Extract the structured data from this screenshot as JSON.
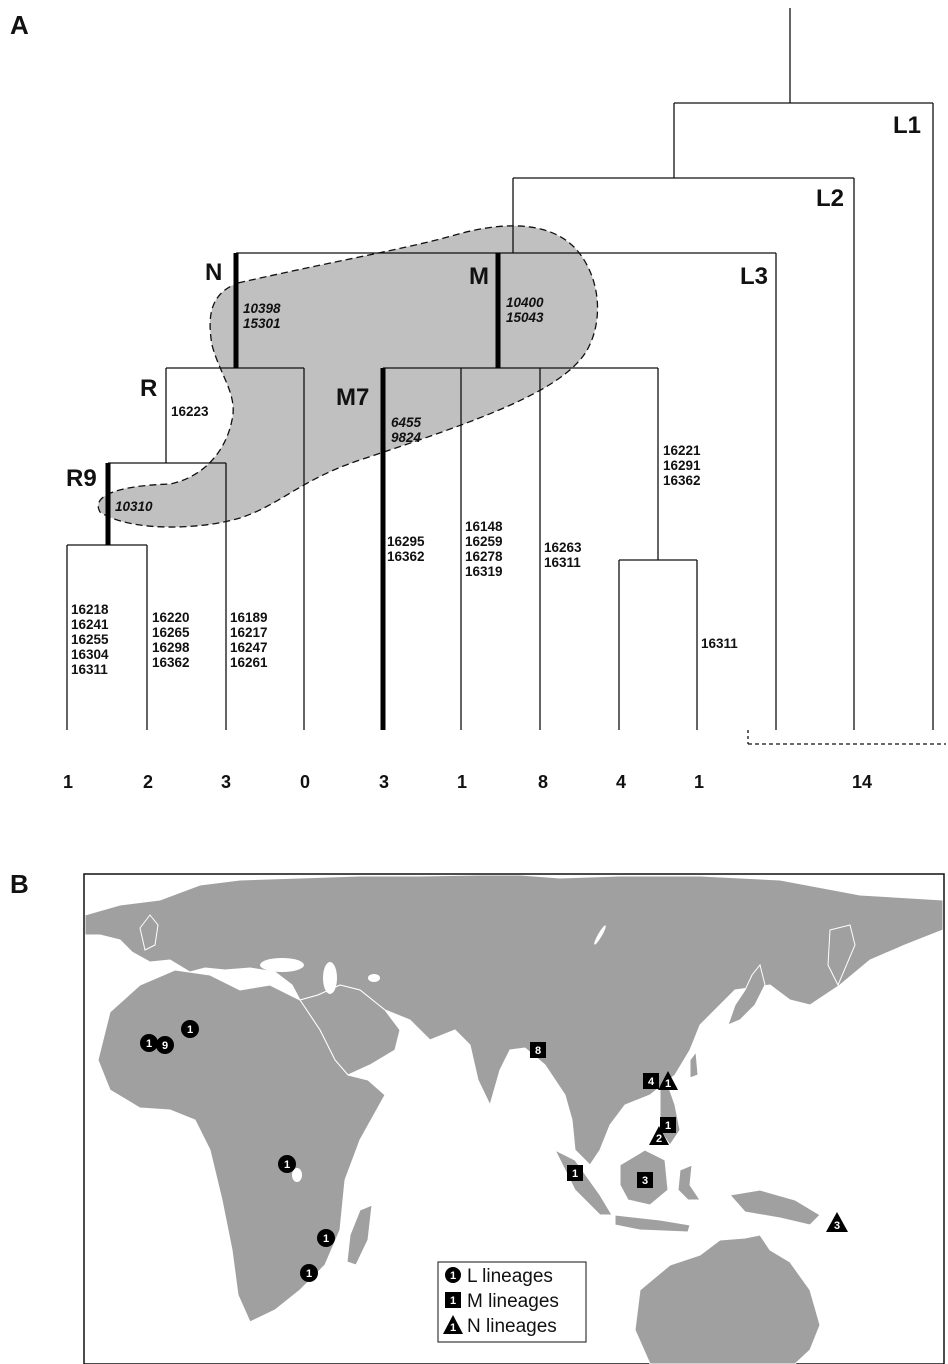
{
  "panels": {
    "a_label": "A",
    "b_label": "B"
  },
  "tree": {
    "clades": {
      "L1": "L1",
      "L2": "L2",
      "L3": "L3",
      "N": "N",
      "M": "M",
      "R": "R",
      "M7": "M7",
      "R9": "R9"
    },
    "mutations": {
      "N": [
        "10398",
        "15301"
      ],
      "M": [
        "10400",
        "15043"
      ],
      "R": [
        "16223"
      ],
      "M7": [
        "6455",
        "9824"
      ],
      "R9": [
        "10310"
      ],
      "leaf_r9_1": [
        "16218",
        "16241",
        "16255",
        "16304",
        "16311"
      ],
      "leaf_r9_2": [
        "16220",
        "16265",
        "16298",
        "16362"
      ],
      "leaf_r_3": [
        "16189",
        "16217",
        "16247",
        "16261"
      ],
      "m7_stem": [
        "16295",
        "16362"
      ],
      "m_b1": [
        "16148",
        "16259",
        "16278",
        "16319"
      ],
      "m_b2": [
        "16263",
        "16311"
      ],
      "m_b3": [
        "16221",
        "16291",
        "16362"
      ],
      "m_b3_sub": [
        "16311"
      ]
    },
    "counts": [
      "1",
      "2",
      "3",
      "0",
      "3",
      "1",
      "8",
      "4",
      "1",
      "14"
    ]
  },
  "map": {
    "markers": [
      {
        "type": "L",
        "label": "1"
      },
      {
        "type": "L",
        "label": "1"
      },
      {
        "type": "L",
        "label": "9"
      },
      {
        "type": "L",
        "label": "1"
      },
      {
        "type": "L",
        "label": "1"
      },
      {
        "type": "L",
        "label": "1"
      },
      {
        "type": "M",
        "label": "8"
      },
      {
        "type": "M",
        "label": "4"
      },
      {
        "type": "N",
        "label": "1"
      },
      {
        "type": "M",
        "label": "1"
      },
      {
        "type": "N",
        "label": "2"
      },
      {
        "type": "M",
        "label": "1"
      },
      {
        "type": "M",
        "label": "3"
      },
      {
        "type": "N",
        "label": "3"
      }
    ],
    "legend": [
      {
        "type": "L",
        "symbol_label": "1",
        "text": "L lineages"
      },
      {
        "type": "M",
        "symbol_label": "1",
        "text": "M lineages"
      },
      {
        "type": "N",
        "symbol_label": "1",
        "text": "N lineages"
      }
    ],
    "colors": {
      "land": "#a0a0a0",
      "sea": "#ffffff",
      "highlight": "#c0c0c0",
      "marker": "#000000"
    }
  }
}
